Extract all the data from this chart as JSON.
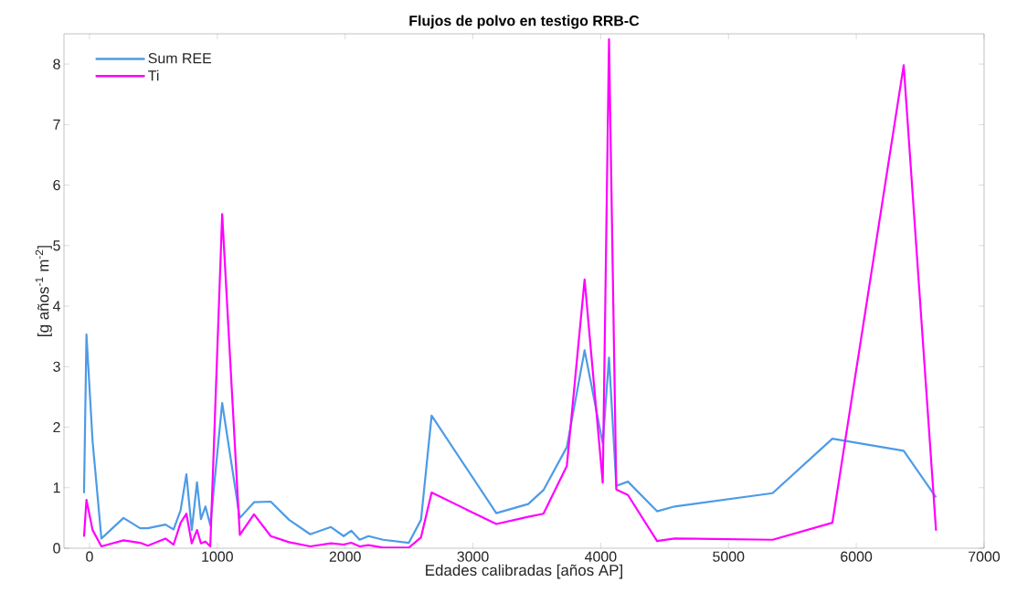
{
  "chart_data": {
    "type": "line",
    "title": "Flujos de polvo en testigo RRB-C",
    "xlabel": "Edades calibradas [años AP]",
    "ylabel": "[g años$^{-1}$ m$^{-2}$]",
    "x": [
      -43,
      -24,
      24,
      93,
      266,
      396,
      456,
      594,
      658,
      713,
      758,
      800,
      841,
      872,
      907,
      945,
      1038,
      1176,
      1287,
      1418,
      1561,
      1727,
      1889,
      1989,
      2048,
      2114,
      2183,
      2297,
      2499,
      2594,
      2677,
      3183,
      3433,
      3552,
      3735,
      3874,
      4016,
      4065,
      4122,
      4213,
      4441,
      4578,
      5345,
      5813,
      6371,
      6624
    ],
    "series": [
      {
        "name": "Sum REE",
        "color": "#4d9be6",
        "values": [
          0.91,
          3.53,
          1.77,
          0.16,
          0.5,
          0.33,
          0.33,
          0.39,
          0.31,
          0.63,
          1.22,
          0.3,
          1.09,
          0.48,
          0.69,
          0.38,
          2.4,
          0.5,
          0.76,
          0.77,
          0.47,
          0.23,
          0.35,
          0.2,
          0.29,
          0.14,
          0.2,
          0.14,
          0.09,
          0.47,
          2.19,
          0.58,
          0.73,
          0.96,
          1.67,
          3.27,
          1.73,
          3.15,
          1.03,
          1.1,
          0.61,
          0.69,
          0.91,
          1.81,
          1.61,
          0.84
        ]
      },
      {
        "name": "Ti",
        "color": "#ff00ff",
        "values": [
          0.19,
          0.8,
          0.3,
          0.03,
          0.13,
          0.09,
          0.04,
          0.16,
          0.06,
          0.42,
          0.57,
          0.08,
          0.3,
          0.08,
          0.11,
          0.03,
          5.52,
          0.22,
          0.56,
          0.2,
          0.1,
          0.03,
          0.08,
          0.06,
          0.09,
          0.03,
          0.05,
          0.01,
          0.01,
          0.18,
          0.92,
          0.4,
          0.52,
          0.57,
          1.36,
          4.44,
          1.08,
          8.41,
          0.97,
          0.88,
          0.12,
          0.16,
          0.14,
          0.42,
          7.98,
          0.29
        ]
      }
    ],
    "xlim": [
      -200,
      7000
    ],
    "xticks": [
      0,
      1000,
      2000,
      3000,
      4000,
      5000,
      6000,
      7000
    ],
    "ylim": [
      0,
      8.5
    ],
    "yticks": [
      0,
      1,
      2,
      3,
      4,
      5,
      6,
      7,
      8
    ],
    "legend": "top left",
    "grid": false
  }
}
